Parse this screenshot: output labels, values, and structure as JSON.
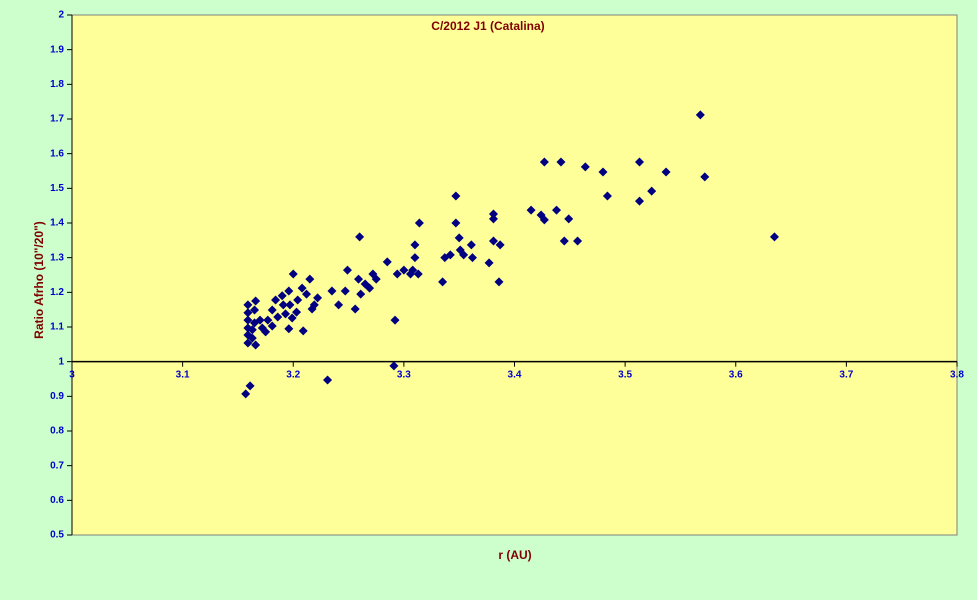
{
  "chart_data": {
    "type": "scatter",
    "title": "C/2012 J1 (Catalina)",
    "x_label": "r (AU)",
    "y_label": "Ratio Afrho (10\"/20\")",
    "color": "#000080",
    "marker": "diamond",
    "grid": false,
    "x_axis_crosses_at": 1,
    "x": [
      3.568,
      3.572,
      3.635,
      3.513,
      3.537,
      3.524,
      3.513,
      3.464,
      3.48,
      3.484,
      3.442,
      3.427,
      3.415,
      3.424,
      3.427,
      3.438,
      3.449,
      3.445,
      3.457,
      3.347,
      3.347,
      3.314,
      3.381,
      3.381,
      3.35,
      3.361,
      3.381,
      3.387,
      3.351,
      3.354,
      3.362,
      3.342,
      3.337,
      3.377,
      3.386,
      3.335,
      3.31,
      3.31,
      3.26,
      3.285,
      3.294,
      3.3,
      3.306,
      3.308,
      3.313,
      3.292,
      3.291,
      3.249,
      3.259,
      3.272,
      3.275,
      3.265,
      3.269,
      3.261,
      3.247,
      3.235,
      3.256,
      3.241,
      3.231,
      3.2,
      3.215,
      3.208,
      3.212,
      3.204,
      3.222,
      3.219,
      3.217,
      3.209,
      3.196,
      3.19,
      3.184,
      3.197,
      3.203,
      3.193,
      3.186,
      3.196,
      3.181,
      3.177,
      3.181,
      3.175,
      3.17,
      3.172,
      3.166,
      3.165,
      3.159,
      3.159,
      3.159,
      3.159,
      3.159,
      3.159,
      3.163,
      3.165,
      3.166,
      3.163,
      3.157,
      3.161,
      3.191,
      3.199
    ],
    "values": [
      1.712,
      1.533,
      1.36,
      1.576,
      1.547,
      1.492,
      1.463,
      1.562,
      1.547,
      1.478,
      1.576,
      1.576,
      1.437,
      1.423,
      1.409,
      1.437,
      1.412,
      1.348,
      1.348,
      1.478,
      1.4,
      1.4,
      1.426,
      1.412,
      1.357,
      1.337,
      1.348,
      1.337,
      1.322,
      1.308,
      1.3,
      1.308,
      1.3,
      1.285,
      1.23,
      1.23,
      1.337,
      1.3,
      1.36,
      1.288,
      1.253,
      1.264,
      1.253,
      1.264,
      1.253,
      1.12,
      0.988,
      1.264,
      1.238,
      1.253,
      1.238,
      1.224,
      1.212,
      1.195,
      1.204,
      1.204,
      1.152,
      1.164,
      0.947,
      1.253,
      1.238,
      1.212,
      1.195,
      1.178,
      1.184,
      1.164,
      1.152,
      1.089,
      1.204,
      1.19,
      1.178,
      1.164,
      1.143,
      1.138,
      1.129,
      1.095,
      1.149,
      1.12,
      1.103,
      1.086,
      1.12,
      1.097,
      1.175,
      1.149,
      1.164,
      1.141,
      1.12,
      1.097,
      1.077,
      1.054,
      1.068,
      1.112,
      1.048,
      1.092,
      0.907,
      0.93,
      1.164,
      1.126
    ],
    "xlim": [
      3,
      3.8
    ],
    "xticks": [
      3,
      3.1,
      3.2,
      3.3,
      3.4,
      3.5,
      3.6,
      3.7,
      3.8
    ],
    "ylim": [
      0.5,
      2
    ],
    "yticks": [
      0.5,
      0.6,
      0.7,
      0.8,
      0.9,
      1,
      1.1,
      1.2,
      1.3,
      1.4,
      1.5,
      1.6,
      1.7,
      1.8,
      1.9,
      2
    ]
  }
}
